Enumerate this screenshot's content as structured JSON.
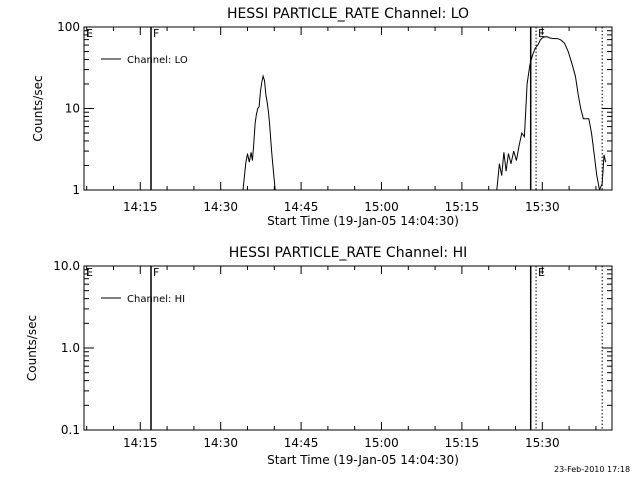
{
  "footer": {
    "timestamp": "23-Feb-2010 17:18"
  },
  "chart_data": [
    {
      "type": "line",
      "title": "HESSI PARTICLE_RATE Channel: LO",
      "xlabel": "Start Time (19-Jan-05 14:04:30)",
      "ylabel": "Counts/sec",
      "y_scale": "log",
      "xlim": [
        "14:04:30",
        "15:43:00"
      ],
      "ylim": [
        1,
        100
      ],
      "x_ticks": [
        "14:15",
        "14:30",
        "14:45",
        "15:00",
        "15:15",
        "15:30"
      ],
      "y_ticks": [
        "1",
        "10",
        "100"
      ],
      "grid": false,
      "legend": {
        "position": "top-left",
        "entries": [
          "Channel: LO"
        ]
      },
      "series": [
        {
          "name": "Channel: LO",
          "color": "#000000",
          "segments": [
            {
              "x": [
                "14:34:10",
                "14:34:40",
                "14:35:00",
                "14:35:20",
                "14:35:40",
                "14:35:55",
                "14:36:10",
                "14:36:25",
                "14:36:40",
                "14:36:55",
                "14:37:10",
                "14:37:25",
                "14:37:40",
                "14:37:55",
                "14:38:10",
                "14:38:25",
                "14:38:40",
                "14:38:55",
                "14:39:10",
                "14:39:30",
                "14:39:50",
                "14:40:10"
              ],
              "y": [
                1,
                2.1,
                2.8,
                2.2,
                2.9,
                2.3,
                3.6,
                6.5,
                8.5,
                10,
                10.5,
                16,
                21,
                25,
                22,
                15,
                12,
                9,
                6,
                3,
                1.7,
                1
              ]
            },
            {
              "x": [
                "15:21:30",
                "15:22:00",
                "15:22:25",
                "15:22:50",
                "15:23:15",
                "15:23:40",
                "15:24:10",
                "15:24:40",
                "15:25:10",
                "15:25:40",
                "15:26:10",
                "15:26:40",
                "15:27:10",
                "15:27:40",
                "15:28:10",
                "15:28:40",
                "15:29:10",
                "15:29:40",
                "15:30:10",
                "15:30:50",
                "15:31:30",
                "15:32:10",
                "15:32:50",
                "15:33:30",
                "15:34:10",
                "15:34:50",
                "15:35:30",
                "15:36:10",
                "15:36:40",
                "15:37:10",
                "15:37:40",
                "15:38:10",
                "15:38:40",
                "15:39:10",
                "15:39:40",
                "15:40:10",
                "15:40:40",
                "15:41:10",
                "15:41:30",
                "15:41:50"
              ],
              "y": [
                1,
                2.1,
                1.5,
                2.9,
                1.7,
                2.8,
                2.1,
                3.0,
                2.3,
                3.5,
                5,
                4.5,
                20,
                34,
                45,
                55,
                60,
                70,
                75,
                76,
                73,
                72,
                72,
                69,
                63,
                50,
                36,
                25,
                15,
                10,
                7.5,
                7.5,
                7.5,
                5,
                2.8,
                1.5,
                1,
                1.2,
                2.7,
                2.2
              ]
            }
          ]
        }
      ],
      "annotations": [
        {
          "type": "solid-vline",
          "x": "14:17:00"
        },
        {
          "type": "solid-vline",
          "x": "15:27:50"
        },
        {
          "type": "dotted-vline",
          "x": "15:28:50"
        },
        {
          "type": "dotted-vline",
          "x": "15:41:10"
        },
        {
          "type": "text",
          "label": "E",
          "x": "14:04:30"
        },
        {
          "type": "text",
          "label": "F",
          "x": "14:17:00"
        },
        {
          "type": "text",
          "label": "E",
          "x": "15:28:50"
        }
      ]
    },
    {
      "type": "line",
      "title": "HESSI PARTICLE_RATE Channel: HI",
      "xlabel": "Start Time (19-Jan-05 14:04:30)",
      "ylabel": "Counts/sec",
      "y_scale": "log",
      "xlim": [
        "14:04:30",
        "15:43:00"
      ],
      "ylim": [
        0.1,
        10
      ],
      "x_ticks": [
        "14:15",
        "14:30",
        "14:45",
        "15:00",
        "15:15",
        "15:30"
      ],
      "y_ticks": [
        "0.1",
        "1.0",
        "10.0"
      ],
      "grid": false,
      "legend": {
        "position": "top-left",
        "entries": [
          "Channel: HI"
        ]
      },
      "series": [
        {
          "name": "Channel: HI",
          "color": "#000000",
          "segments": []
        }
      ],
      "annotations": [
        {
          "type": "solid-vline",
          "x": "14:17:00"
        },
        {
          "type": "solid-vline",
          "x": "15:27:50"
        },
        {
          "type": "dotted-vline",
          "x": "15:28:50"
        },
        {
          "type": "dotted-vline",
          "x": "15:41:10"
        },
        {
          "type": "text",
          "label": "E",
          "x": "14:04:30"
        },
        {
          "type": "text",
          "label": "F",
          "x": "14:17:00"
        },
        {
          "type": "text",
          "label": "E",
          "x": "15:28:50"
        }
      ]
    }
  ]
}
